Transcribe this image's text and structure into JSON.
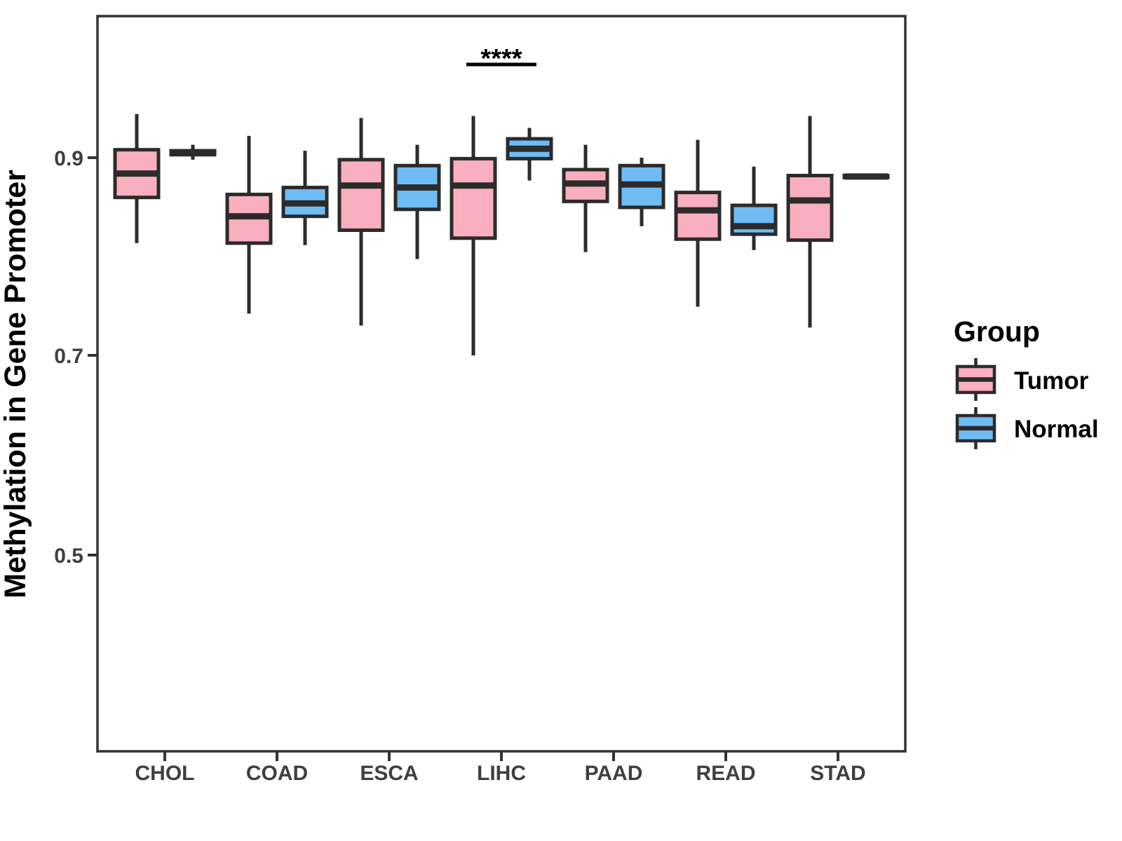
{
  "chart_data": {
    "type": "boxplot",
    "grouped": true,
    "title": "",
    "xlabel": "",
    "ylabel": "Methylation in Gene Promoter",
    "categories": [
      "CHOL",
      "COAD",
      "ESCA",
      "LIHC",
      "PAAD",
      "READ",
      "STAD"
    ],
    "yticks": [
      {
        "value": 0.9,
        "label": "0.9"
      },
      {
        "value": 0.7,
        "label": "0.7"
      },
      {
        "value": 0.5,
        "label": "0.5"
      }
    ],
    "ylim": [
      0.3,
      1.04
    ],
    "grid": false,
    "legend": {
      "title": "Group",
      "position": "right"
    },
    "colors": {
      "tumor_fill": "#F9AFBF",
      "normal_fill": "#6FBCF5",
      "stroke": "#2B2B2B",
      "axis_text": "#3F3F3F",
      "title_text": "#000000"
    },
    "significance": {
      "category": "LIHC",
      "label": "****"
    },
    "series": [
      {
        "name": "Tumor",
        "color": "#F9AFBF",
        "data": [
          {
            "category": "CHOL",
            "min": 0.814,
            "q1": 0.86,
            "median": 0.884,
            "q3": 0.908,
            "max": 0.944
          },
          {
            "category": "COAD",
            "min": 0.743,
            "q1": 0.814,
            "median": 0.841,
            "q3": 0.863,
            "max": 0.922
          },
          {
            "category": "ESCA",
            "min": 0.731,
            "q1": 0.827,
            "median": 0.872,
            "q3": 0.898,
            "max": 0.94
          },
          {
            "category": "LIHC",
            "min": 0.701,
            "q1": 0.819,
            "median": 0.872,
            "q3": 0.899,
            "max": 0.942
          },
          {
            "category": "PAAD",
            "min": 0.805,
            "q1": 0.856,
            "median": 0.874,
            "q3": 0.888,
            "max": 0.913
          },
          {
            "category": "READ",
            "min": 0.75,
            "q1": 0.818,
            "median": 0.847,
            "q3": 0.865,
            "max": 0.918
          },
          {
            "category": "STAD",
            "min": 0.729,
            "q1": 0.817,
            "median": 0.857,
            "q3": 0.882,
            "max": 0.942
          }
        ]
      },
      {
        "name": "Normal",
        "color": "#6FBCF5",
        "data": [
          {
            "category": "CHOL",
            "min": 0.898,
            "q1": 0.903,
            "median": 0.905,
            "q3": 0.907,
            "max": 0.913
          },
          {
            "category": "COAD",
            "min": 0.812,
            "q1": 0.841,
            "median": 0.854,
            "q3": 0.87,
            "max": 0.907
          },
          {
            "category": "ESCA",
            "min": 0.798,
            "q1": 0.848,
            "median": 0.87,
            "q3": 0.892,
            "max": 0.913
          },
          {
            "category": "LIHC",
            "min": 0.877,
            "q1": 0.899,
            "median": 0.909,
            "q3": 0.919,
            "max": 0.93
          },
          {
            "category": "PAAD",
            "min": 0.831,
            "q1": 0.85,
            "median": 0.873,
            "q3": 0.892,
            "max": 0.9
          },
          {
            "category": "READ",
            "min": 0.807,
            "q1": 0.823,
            "median": 0.831,
            "q3": 0.852,
            "max": 0.891
          },
          {
            "category": "STAD",
            "min": 0.879,
            "q1": 0.88,
            "median": 0.881,
            "q3": 0.882,
            "max": 0.883
          }
        ]
      }
    ]
  }
}
